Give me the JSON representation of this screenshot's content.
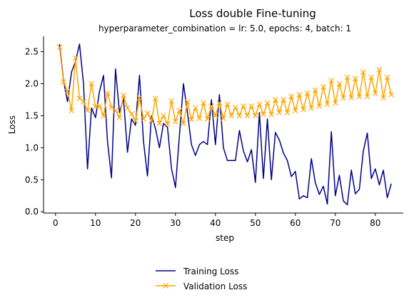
{
  "chart_data": {
    "type": "line",
    "title": "Loss double Fine-tuning",
    "subtitle": "hyperparameter_combination = lr: 5.0, epochs: 4, batch: 1",
    "xlabel": "step",
    "ylabel": "Loss",
    "xlim": [
      -3,
      87
    ],
    "ylim": [
      -0.02,
      2.74
    ],
    "xticks": [
      0,
      10,
      20,
      30,
      40,
      50,
      60,
      70,
      80
    ],
    "yticks": [
      0.0,
      0.5,
      1.0,
      1.5,
      2.0,
      2.5
    ],
    "ytick_labels": [
      "0.0",
      "0.5",
      "1.0",
      "1.5",
      "2.0",
      "2.5"
    ],
    "grid": false,
    "legend_position": "bottom-center",
    "series": [
      {
        "name": "Training Loss",
        "color": "#00008b",
        "marker": "none",
        "x": [
          1,
          2,
          3,
          4,
          5,
          6,
          7,
          8,
          9,
          10,
          11,
          12,
          13,
          14,
          15,
          16,
          17,
          18,
          19,
          20,
          21,
          22,
          23,
          24,
          25,
          26,
          27,
          28,
          29,
          30,
          31,
          32,
          33,
          34,
          35,
          36,
          37,
          38,
          39,
          40,
          41,
          42,
          43,
          44,
          45,
          46,
          47,
          48,
          49,
          50,
          51,
          52,
          53,
          54,
          55,
          56,
          57,
          58,
          59,
          60,
          61,
          62,
          63,
          64,
          65,
          66,
          67,
          68,
          69,
          70,
          71,
          72,
          73,
          74,
          75,
          76,
          77,
          78,
          79,
          80,
          81,
          82,
          83,
          84
        ],
        "values": [
          2.62,
          2.05,
          1.72,
          2.18,
          2.35,
          2.62,
          2.0,
          0.67,
          1.62,
          1.47,
          1.88,
          2.13,
          1.1,
          0.53,
          2.23,
          1.55,
          1.77,
          0.93,
          1.45,
          1.35,
          2.13,
          1.1,
          0.56,
          1.5,
          1.3,
          1.0,
          1.38,
          1.32,
          0.68,
          0.38,
          1.2,
          2.0,
          1.55,
          1.05,
          0.88,
          1.05,
          1.1,
          1.05,
          1.75,
          1.05,
          1.83,
          1.0,
          0.8,
          0.8,
          0.8,
          1.27,
          0.95,
          0.78,
          0.97,
          0.46,
          1.55,
          0.52,
          1.45,
          0.5,
          1.24,
          1.12,
          0.92,
          0.8,
          0.55,
          0.63,
          0.2,
          0.25,
          0.22,
          0.83,
          0.45,
          0.27,
          0.4,
          0.12,
          1.25,
          0.25,
          0.57,
          0.17,
          0.11,
          0.65,
          0.28,
          0.35,
          0.95,
          1.23,
          0.52,
          0.67,
          0.42,
          0.65,
          0.22,
          0.44
        ]
      },
      {
        "name": "Validation Loss",
        "color": "#ffa500",
        "marker": "x",
        "x": [
          1,
          2,
          3,
          4,
          5,
          6,
          7,
          8,
          9,
          10,
          11,
          12,
          13,
          14,
          15,
          16,
          17,
          18,
          19,
          20,
          21,
          22,
          23,
          24,
          25,
          26,
          27,
          28,
          29,
          30,
          31,
          32,
          33,
          34,
          35,
          36,
          37,
          38,
          39,
          40,
          41,
          42,
          43,
          44,
          45,
          46,
          47,
          48,
          49,
          50,
          51,
          52,
          53,
          54,
          55,
          56,
          57,
          58,
          59,
          60,
          61,
          62,
          63,
          64,
          65,
          66,
          67,
          68,
          69,
          70,
          71,
          72,
          73,
          74,
          75,
          76,
          77,
          78,
          79,
          80,
          81,
          82,
          83,
          84
        ],
        "values": [
          2.57,
          2.03,
          1.88,
          1.58,
          2.4,
          1.77,
          1.72,
          1.58,
          2.0,
          1.64,
          1.65,
          1.5,
          1.85,
          1.63,
          1.58,
          1.47,
          1.82,
          1.62,
          1.53,
          1.42,
          1.78,
          1.45,
          1.54,
          1.42,
          1.77,
          1.38,
          1.5,
          1.37,
          1.73,
          1.41,
          1.58,
          1.38,
          1.72,
          1.44,
          1.62,
          1.46,
          1.7,
          1.45,
          1.65,
          1.5,
          1.7,
          1.46,
          1.68,
          1.5,
          1.63,
          1.5,
          1.65,
          1.5,
          1.65,
          1.5,
          1.68,
          1.52,
          1.7,
          1.52,
          1.75,
          1.55,
          1.75,
          1.55,
          1.8,
          1.58,
          1.83,
          1.6,
          1.85,
          1.62,
          1.9,
          1.65,
          1.95,
          1.68,
          2.05,
          1.7,
          2.0,
          1.78,
          2.1,
          1.78,
          2.08,
          1.8,
          2.18,
          1.8,
          2.1,
          1.85,
          2.22,
          1.78,
          2.1,
          1.83
        ]
      }
    ]
  }
}
